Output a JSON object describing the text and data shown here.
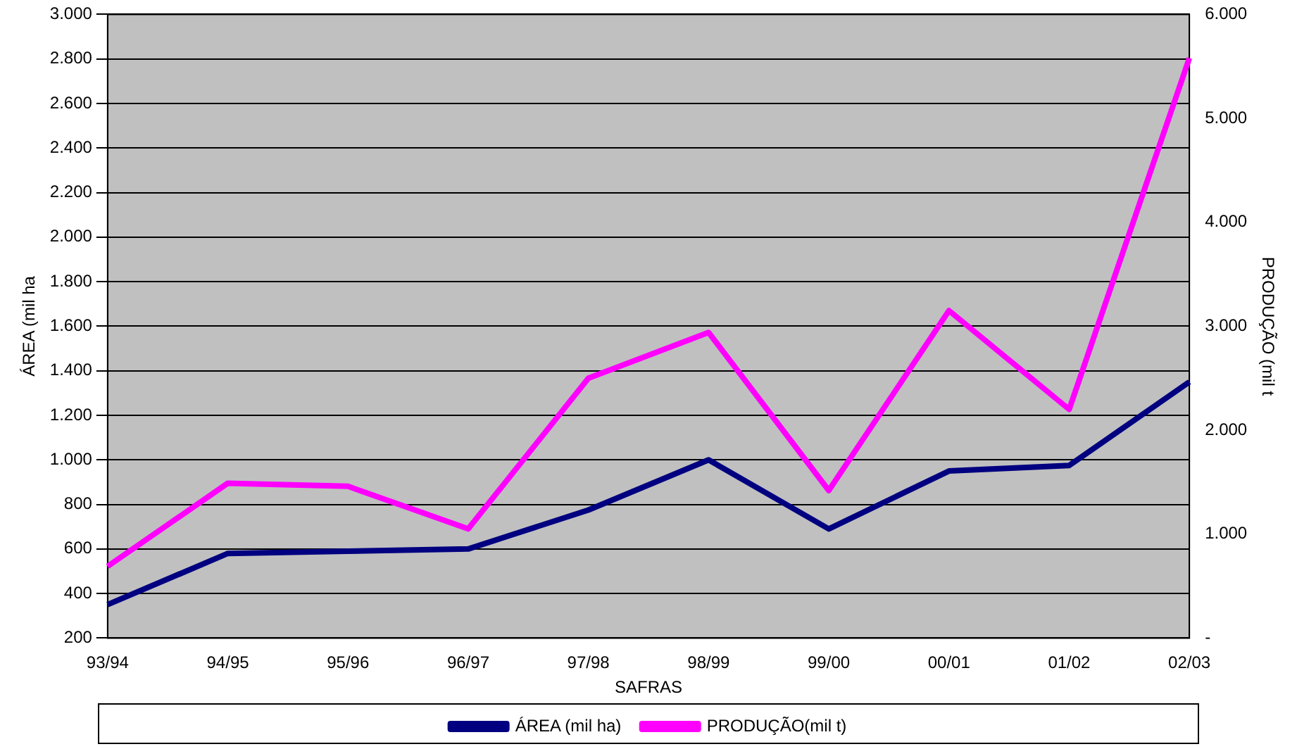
{
  "chart_data": {
    "type": "line",
    "xlabel": "SAFRAS",
    "ylabel": "ÁREA (mil ha",
    "y2label": "PRODUÇÃO (mil t",
    "categories": [
      "93/94",
      "94/95",
      "95/96",
      "96/97",
      "97/98",
      "98/99",
      "99/00",
      "00/01",
      "01/02",
      "02/03"
    ],
    "series": [
      {
        "name": "ÁREA (mil ha)",
        "color": "#000080",
        "values": [
          350,
          580,
          590,
          600,
          775,
          1000,
          690,
          950,
          975,
          1350
        ]
      },
      {
        "name": "PRODUÇÃO(mil t)",
        "color": "#ff00ff",
        "axis": "y2",
        "values": [
          690,
          1490,
          1460,
          1050,
          2500,
          2940,
          1420,
          3150,
          2200,
          5580
        ]
      }
    ],
    "ylim": [
      200,
      3000
    ],
    "yticks": [
      200,
      400,
      600,
      800,
      {
        "value": 1000,
        "label": "1.000"
      },
      {
        "value": 1200,
        "label": "1.200"
      },
      {
        "value": 1400,
        "label": "1.400"
      },
      {
        "value": 1600,
        "label": "1.600"
      },
      {
        "value": 1800,
        "label": "1.800"
      },
      {
        "value": 2000,
        "label": "2.000"
      },
      {
        "value": 2200,
        "label": "2.200"
      },
      {
        "value": 2400,
        "label": "2.400"
      },
      {
        "value": 2600,
        "label": "2.600"
      },
      {
        "value": 2800,
        "label": "2.800"
      },
      {
        "value": 3000,
        "label": "3.000"
      }
    ],
    "y2lim": [
      0,
      6000
    ],
    "y2ticks": [
      {
        "value": 0,
        "label": "-"
      },
      {
        "value": 1000,
        "label": "1.000"
      },
      {
        "value": 2000,
        "label": "2.000"
      },
      {
        "value": 3000,
        "label": "3.000"
      },
      {
        "value": 4000,
        "label": "4.000"
      },
      {
        "value": 5000,
        "label": "5.000"
      },
      {
        "value": 6000,
        "label": "6.000"
      }
    ],
    "grid": "y",
    "legend": "bottom",
    "marker": "none",
    "line_style": "solid"
  }
}
